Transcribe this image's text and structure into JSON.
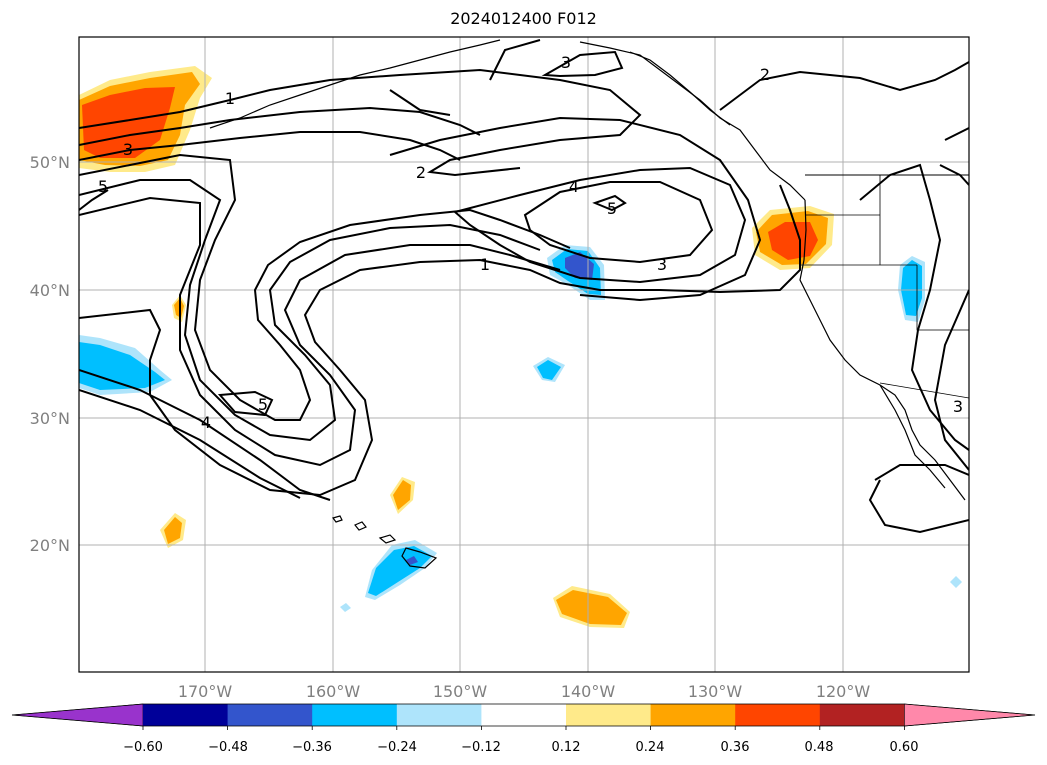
{
  "title": "2024012400 F012",
  "map": {
    "lat_labels": [
      "50°N",
      "40°N",
      "30°N",
      "20°N"
    ],
    "lon_labels": [
      "170°W",
      "160°W",
      "150°W",
      "140°W",
      "130°W",
      "120°W"
    ],
    "grid": true,
    "contour_labels": [
      "1",
      "1",
      "2",
      "2",
      "3",
      "3",
      "3",
      "3",
      "4",
      "4",
      "5",
      "5",
      "5"
    ]
  },
  "colorbar": {
    "ticks": [
      "−0.60",
      "−0.48",
      "−0.36",
      "−0.24",
      "−0.12",
      "0.12",
      "0.24",
      "0.36",
      "0.48",
      "0.60"
    ],
    "colors": [
      "#9933cc",
      "#000099",
      "#3355cc",
      "#00bfff",
      "#aee4fb",
      "#ffffff",
      "#ffea8a",
      "#ffa500",
      "#ff4500",
      "#b22222",
      "#ff88aa"
    ],
    "extend": "both"
  },
  "colors": {
    "contour": "#000000",
    "grid": "#b0b0b0",
    "coast": "#000000"
  }
}
